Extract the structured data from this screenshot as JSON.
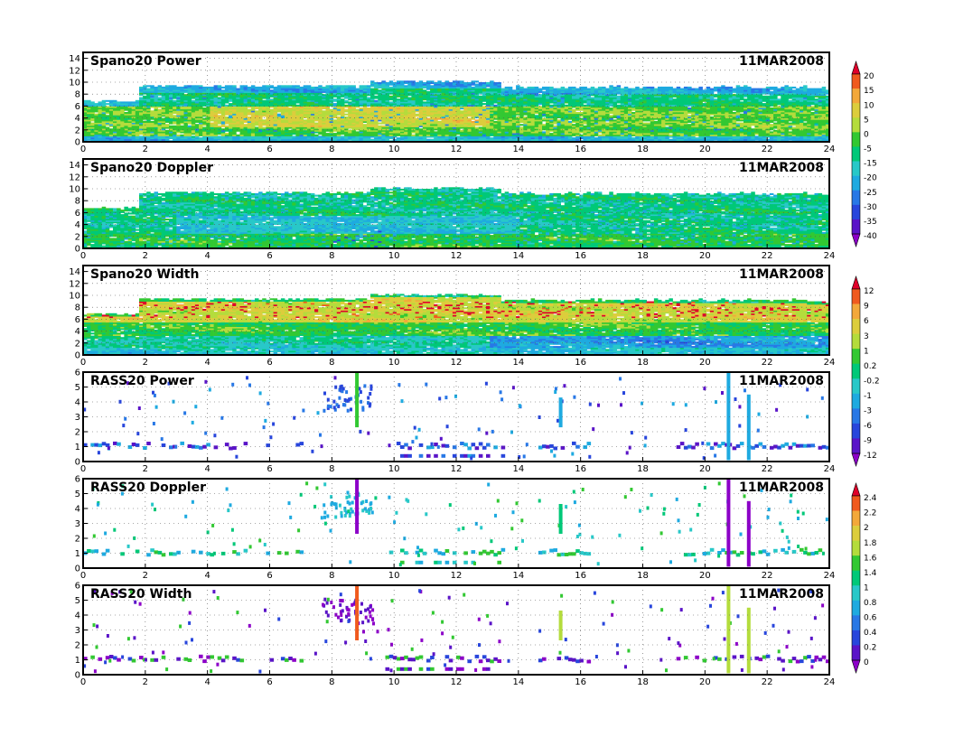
{
  "chart_data": [
    {
      "type": "heatmap",
      "title": "Spano20  Power",
      "date": "11MAR2008",
      "x_range": [
        0,
        24
      ],
      "x_ticks": [
        "0",
        "2",
        "4",
        "6",
        "8",
        "10",
        "12",
        "14",
        "16",
        "18",
        "20",
        "22",
        "24"
      ],
      "y_range": [
        0,
        15
      ],
      "y_ticks": [
        "0",
        "2",
        "4",
        "6",
        "8",
        "10",
        "12",
        "14"
      ],
      "grid": true,
      "colorbar": {
        "labels": [
          "20",
          "15",
          "10",
          "5",
          "0",
          "-5",
          "-15",
          "-20",
          "-25",
          "-30",
          "-35",
          "-40"
        ],
        "colors": [
          "#e0002a",
          "#f05a1e",
          "#f3a83a",
          "#dccd3c",
          "#b4dc3c",
          "#32c832",
          "#00c878",
          "#28c8c8",
          "#1eaae0",
          "#2878e6",
          "#2846dc",
          "#5a14c8",
          "#8c00c8"
        ]
      }
    },
    {
      "type": "heatmap",
      "title": "Spano20  Doppler",
      "date": "11MAR2008",
      "x_range": [
        0,
        24
      ],
      "x_ticks": [
        "0",
        "2",
        "4",
        "6",
        "8",
        "10",
        "12",
        "14",
        "16",
        "18",
        "20",
        "22",
        "24"
      ],
      "y_range": [
        0,
        15
      ],
      "y_ticks": [
        "0",
        "2",
        "4",
        "6",
        "8",
        "10",
        "12",
        "14"
      ],
      "grid": true
    },
    {
      "type": "heatmap",
      "title": "Spano20  Width",
      "date": "11MAR2008",
      "x_range": [
        0,
        24
      ],
      "x_ticks": [
        "0",
        "2",
        "4",
        "6",
        "8",
        "10",
        "12",
        "14",
        "16",
        "18",
        "20",
        "22",
        "24"
      ],
      "y_range": [
        0,
        15
      ],
      "y_ticks": [
        "0",
        "2",
        "4",
        "6",
        "8",
        "10",
        "12",
        "14"
      ],
      "grid": true,
      "colorbar": {
        "labels": [
          "12",
          "9",
          "6",
          "3",
          "1",
          "0.2",
          "-0.2",
          "-1",
          "-3",
          "-6",
          "-9",
          "-12"
        ],
        "colors": [
          "#e0002a",
          "#f05a1e",
          "#f3a83a",
          "#dccd3c",
          "#b4dc3c",
          "#32c832",
          "#00c878",
          "#28c8c8",
          "#1eaae0",
          "#2878e6",
          "#2846dc",
          "#5a14c8",
          "#8c00c8"
        ]
      }
    },
    {
      "type": "heatmap",
      "title": "RASS20  Power",
      "date": "11MAR2008",
      "x_range": [
        0,
        24
      ],
      "x_ticks": [
        "0",
        "2",
        "4",
        "6",
        "8",
        "10",
        "12",
        "14",
        "16",
        "18",
        "20",
        "22",
        "24"
      ],
      "y_range": [
        0,
        6
      ],
      "y_ticks": [
        "0",
        "1",
        "2",
        "3",
        "4",
        "5",
        "6"
      ],
      "grid": true
    },
    {
      "type": "heatmap",
      "title": "RASS20  Doppler",
      "date": "11MAR2008",
      "x_range": [
        0,
        24
      ],
      "x_ticks": [
        "0",
        "2",
        "4",
        "6",
        "8",
        "10",
        "12",
        "14",
        "16",
        "18",
        "20",
        "22",
        "24"
      ],
      "y_range": [
        0,
        6
      ],
      "y_ticks": [
        "0",
        "1",
        "2",
        "3",
        "4",
        "5",
        "6"
      ],
      "grid": true,
      "colorbar": {
        "labels": [
          "2.4",
          "2.2",
          "2",
          "1.8",
          "1.6",
          "1.4",
          "1",
          "0.8",
          "0.6",
          "0.4",
          "0.2",
          "0"
        ],
        "colors": [
          "#e0002a",
          "#f05a1e",
          "#f3a83a",
          "#dccd3c",
          "#b4dc3c",
          "#32c832",
          "#00c878",
          "#28c8c8",
          "#1eaae0",
          "#2878e6",
          "#2846dc",
          "#5a14c8",
          "#8c00c8"
        ]
      }
    },
    {
      "type": "heatmap",
      "title": "RASS20  Width",
      "date": "11MAR2008",
      "x_range": [
        0,
        24
      ],
      "x_ticks": [
        "0",
        "2",
        "4",
        "6",
        "8",
        "10",
        "12",
        "14",
        "16",
        "18",
        "20",
        "22",
        "24"
      ],
      "y_range": [
        0,
        6
      ],
      "y_ticks": [
        "0",
        "1",
        "2",
        "3",
        "4",
        "5",
        "6"
      ],
      "grid": true
    }
  ]
}
